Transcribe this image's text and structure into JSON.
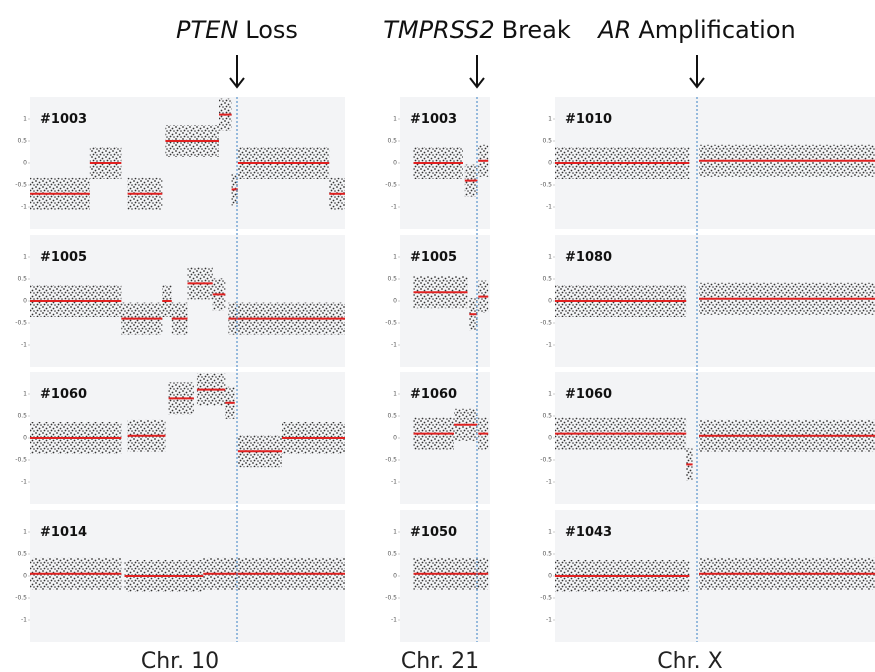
{
  "ylim": [
    -1.5,
    1.5
  ],
  "yticks": [
    1,
    0.5,
    0,
    -0.5,
    -1
  ],
  "columns": [
    {
      "gene": "PTEN",
      "event": "Loss",
      "label": "Chr. 10",
      "panels": [
        {
          "id": "#1003",
          "segments": [
            {
              "from": 0,
              "to": 0.19,
              "level": -0.7
            },
            {
              "from": 0.19,
              "to": 0.29,
              "level": 0
            },
            {
              "from": 0.31,
              "to": 0.42,
              "level": -0.7
            },
            {
              "from": 0.43,
              "to": 0.6,
              "level": 0.5
            },
            {
              "from": 0.6,
              "to": 0.64,
              "level": 1.1
            },
            {
              "from": 0.64,
              "to": 0.66,
              "level": -0.6
            },
            {
              "from": 0.66,
              "to": 0.95,
              "level": 0
            },
            {
              "from": 0.95,
              "to": 1,
              "level": -0.7
            }
          ]
        },
        {
          "id": "#1005",
          "segments": [
            {
              "from": 0,
              "to": 0.29,
              "level": 0
            },
            {
              "from": 0.29,
              "to": 0.42,
              "level": -0.4
            },
            {
              "from": 0.42,
              "to": 0.45,
              "level": 0
            },
            {
              "from": 0.45,
              "to": 0.5,
              "level": -0.4
            },
            {
              "from": 0.5,
              "to": 0.58,
              "level": 0.4
            },
            {
              "from": 0.58,
              "to": 0.62,
              "level": 0.15
            },
            {
              "from": 0.63,
              "to": 1,
              "level": -0.4
            }
          ]
        },
        {
          "id": "#1060",
          "segments": [
            {
              "from": 0,
              "to": 0.29,
              "level": 0
            },
            {
              "from": 0.31,
              "to": 0.43,
              "level": 0.05
            },
            {
              "from": 0.44,
              "to": 0.52,
              "level": 0.9
            },
            {
              "from": 0.53,
              "to": 0.62,
              "level": 1.1
            },
            {
              "from": 0.62,
              "to": 0.65,
              "level": 0.8
            },
            {
              "from": 0.66,
              "to": 0.8,
              "level": -0.3
            },
            {
              "from": 0.8,
              "to": 1,
              "level": 0
            }
          ]
        },
        {
          "id": "#1014",
          "segments": [
            {
              "from": 0,
              "to": 0.29,
              "level": 0.05
            },
            {
              "from": 0.3,
              "to": 0.55,
              "level": 0
            },
            {
              "from": 0.55,
              "to": 1,
              "level": 0.05
            }
          ]
        }
      ]
    },
    {
      "gene": "TMPRSS2",
      "event": "Break",
      "label": "Chr. 21",
      "panels": [
        {
          "id": "#1003",
          "segments": [
            {
              "from": 0.15,
              "to": 0.7,
              "level": 0
            },
            {
              "from": 0.72,
              "to": 0.86,
              "level": -0.4
            },
            {
              "from": 0.87,
              "to": 0.98,
              "level": 0.05
            }
          ]
        },
        {
          "id": "#1005",
          "segments": [
            {
              "from": 0.15,
              "to": 0.75,
              "level": 0.2
            },
            {
              "from": 0.77,
              "to": 0.86,
              "level": -0.3
            },
            {
              "from": 0.87,
              "to": 0.98,
              "level": 0.1
            }
          ]
        },
        {
          "id": "#1060",
          "segments": [
            {
              "from": 0.15,
              "to": 0.6,
              "level": 0.1
            },
            {
              "from": 0.6,
              "to": 0.86,
              "level": 0.3
            },
            {
              "from": 0.87,
              "to": 0.98,
              "level": 0.1
            }
          ]
        },
        {
          "id": "#1050",
          "segments": [
            {
              "from": 0.15,
              "to": 0.98,
              "level": 0.05
            }
          ]
        }
      ]
    },
    {
      "gene": "AR",
      "event": "Amplification",
      "label": "Chr. X",
      "panels": [
        {
          "id": "#1010",
          "segments": [
            {
              "from": 0,
              "to": 0.42,
              "level": 0
            },
            {
              "from": 0.45,
              "to": 1,
              "level": 0.05
            }
          ]
        },
        {
          "id": "#1080",
          "segments": [
            {
              "from": 0,
              "to": 0.41,
              "level": 0
            },
            {
              "from": 0.45,
              "to": 1,
              "level": 0.05
            }
          ]
        },
        {
          "id": "#1060",
          "segments": [
            {
              "from": 0,
              "to": 0.41,
              "level": 0.1
            },
            {
              "from": 0.41,
              "to": 0.43,
              "level": -0.6
            },
            {
              "from": 0.45,
              "to": 1,
              "level": 0.05
            }
          ]
        },
        {
          "id": "#1043",
          "segments": [
            {
              "from": 0,
              "to": 0.42,
              "level": 0
            },
            {
              "from": 0.45,
              "to": 1,
              "level": 0.05
            }
          ]
        }
      ]
    }
  ]
}
